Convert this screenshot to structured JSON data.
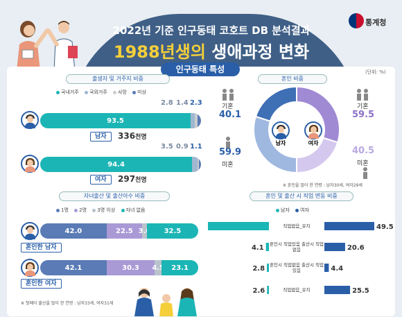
{
  "header": {
    "subtitle": "2022년 기준 인구동태 코호트 DB 분석결과",
    "title_highlight": "1988년생의",
    "title_rest": " 생애과정 변화",
    "logo_text": "통계청"
  },
  "section": {
    "title": "인구동태 특성",
    "unit": "(단위: %)"
  },
  "residence": {
    "title": "출생자 및 거주지 비중",
    "legend": [
      "국내거주",
      "국외거주",
      "사망",
      "미상"
    ],
    "legend_colors": [
      "#1cb5b5",
      "#9fb8d0",
      "#c9ccd0",
      "#5a7bb5"
    ],
    "male": {
      "label": "남자",
      "count": "336",
      "unit": "천명",
      "values": [
        93.5,
        2.8,
        1.4,
        2.3
      ],
      "labels": [
        "93.5",
        "2.8",
        "1.4",
        "2.3"
      ]
    },
    "female": {
      "label": "여자",
      "count": "297",
      "unit": "천명",
      "values": [
        94.4,
        3.5,
        0.9,
        1.1
      ],
      "labels": [
        "94.4",
        "3.5",
        "0.9",
        "1.1"
      ]
    }
  },
  "marriage": {
    "title": "혼인 비중",
    "male": {
      "label": "남자",
      "married_label": "기혼",
      "married": "40.1",
      "unmarried_label": "미혼",
      "unmarried": "59.9",
      "married_value": 40.1
    },
    "female": {
      "label": "여자",
      "married_label": "기혼",
      "married": "59.5",
      "unmarried_label": "미혼",
      "unmarried": "40.5",
      "married_value": 59.5
    },
    "note": "※ 혼인을 많이 한 연령 : 남자30세, 여자29세"
  },
  "children": {
    "title": "자녀출산 및 출산아수 비중",
    "legend": [
      "1명",
      "2명",
      "3명 이상",
      "자녀 없음"
    ],
    "legend_colors": [
      "#5a7bb5",
      "#a99ad6",
      "#b9c3cc",
      "#1cb5b5"
    ],
    "male": {
      "label": "혼인한 남자",
      "values": [
        42.0,
        22.5,
        3.0,
        32.5
      ],
      "labels": [
        "42.0",
        "22.5",
        "3.0",
        "32.5"
      ]
    },
    "female": {
      "label": "혼인한 여자",
      "values": [
        42.1,
        30.3,
        4.5,
        23.1
      ],
      "labels": [
        "42.1",
        "30.3",
        "4.5",
        "23.1"
      ]
    },
    "note": "※ 첫째아 출산을 많이 한 연령 : 남자33세, 여자31세"
  },
  "jobs": {
    "title": "혼인 및 출산 시 직업 변동 비중",
    "legend": [
      "남자",
      "여자"
    ],
    "legend_colors": [
      "#1cb5b5",
      "#2a5fa8"
    ],
    "rows": [
      {
        "label": "직업없음_유지",
        "male": 90.5,
        "female": 49.5,
        "male_label": "90.5",
        "female_label": "49.5"
      },
      {
        "label": "혼인시 직업있음 출산시 직업없음",
        "male": 4.1,
        "female": 20.6,
        "male_label": "4.1",
        "female_label": "20.6"
      },
      {
        "label": "혼인시 직업없음 출산시 직업있음",
        "male": 2.8,
        "female": 4.4,
        "male_label": "2.8",
        "female_label": "4.4"
      },
      {
        "label": "직업없음_유지",
        "male": 2.6,
        "female": 25.5,
        "male_label": "2.6",
        "female_label": "25.5"
      }
    ]
  }
}
